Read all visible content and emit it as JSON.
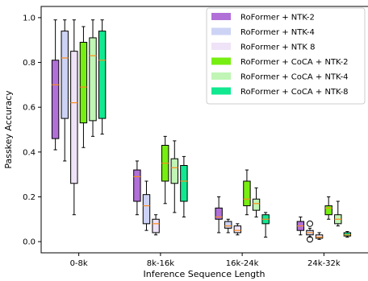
{
  "chart_data": {
    "type": "box",
    "xlabel": "Inference Sequence Length",
    "ylabel": "Passkey Accuracy",
    "ylim": [
      -0.05,
      1.05
    ],
    "yticks": [
      "0.0",
      "0.2",
      "0.4",
      "0.6",
      "0.8",
      "1.0"
    ],
    "ytick_values": [
      0.0,
      0.2,
      0.4,
      0.6,
      0.8,
      1.0
    ],
    "categories": [
      "0-8k",
      "8k-16k",
      "16k-24k",
      "24k-32k"
    ],
    "legend_position": "top-right",
    "series": [
      {
        "name": "RoFormer + NTK-2",
        "color": "#b070d8",
        "boxes": [
          {
            "whislo": 0.41,
            "q1": 0.46,
            "med": 0.7,
            "q3": 0.81,
            "whishi": 0.99
          },
          {
            "whislo": 0.12,
            "q1": 0.18,
            "med": 0.29,
            "q3": 0.32,
            "whishi": 0.36
          },
          {
            "whislo": 0.04,
            "q1": 0.1,
            "med": 0.11,
            "q3": 0.15,
            "whishi": 0.2
          },
          {
            "whislo": 0.03,
            "q1": 0.05,
            "med": 0.07,
            "q3": 0.09,
            "whishi": 0.11
          }
        ]
      },
      {
        "name": "RoFormer + NTK-4",
        "color": "#cdd3f5",
        "boxes": [
          {
            "whislo": 0.36,
            "q1": 0.55,
            "med": 0.82,
            "q3": 0.94,
            "whishi": 0.99
          },
          {
            "whislo": 0.05,
            "q1": 0.08,
            "med": 0.16,
            "q3": 0.21,
            "whishi": 0.27
          },
          {
            "whislo": 0.04,
            "q1": 0.06,
            "med": 0.07,
            "q3": 0.09,
            "whishi": 0.1
          },
          {
            "whislo": 0.02,
            "q1": 0.03,
            "med": 0.04,
            "q3": 0.05,
            "whishi": 0.06,
            "fliers": [
              0.01,
              0.08
            ]
          }
        ]
      },
      {
        "name": "RoFormer + NTK 8",
        "color": "#efe3f7",
        "boxes": [
          {
            "whislo": 0.12,
            "q1": 0.26,
            "med": 0.62,
            "q3": 0.85,
            "whishi": 0.99
          },
          {
            "whislo": 0.03,
            "q1": 0.04,
            "med": 0.08,
            "q3": 0.1,
            "whishi": 0.12
          },
          {
            "whislo": 0.03,
            "q1": 0.04,
            "med": 0.05,
            "q3": 0.07,
            "whishi": 0.08
          },
          {
            "whislo": 0.01,
            "q1": 0.015,
            "med": 0.02,
            "q3": 0.03,
            "whishi": 0.04
          }
        ]
      },
      {
        "name": "RoFormer + CoCA + NTK-2",
        "color": "#77ee11",
        "boxes": [
          {
            "whislo": 0.42,
            "q1": 0.53,
            "med": 0.69,
            "q3": 0.89,
            "whishi": 0.96
          },
          {
            "whislo": 0.17,
            "q1": 0.27,
            "med": 0.35,
            "q3": 0.43,
            "whishi": 0.47
          },
          {
            "whislo": 0.12,
            "q1": 0.16,
            "med": 0.19,
            "q3": 0.27,
            "whishi": 0.32
          },
          {
            "whislo": 0.1,
            "q1": 0.12,
            "med": 0.15,
            "q3": 0.16,
            "whishi": 0.2
          }
        ]
      },
      {
        "name": "RoFormer + CoCA + NTK-4",
        "color": "#c0f5b5",
        "boxes": [
          {
            "whislo": 0.47,
            "q1": 0.54,
            "med": 0.83,
            "q3": 0.91,
            "whishi": 0.99
          },
          {
            "whislo": 0.13,
            "q1": 0.26,
            "med": 0.33,
            "q3": 0.37,
            "whishi": 0.45
          },
          {
            "whislo": 0.11,
            "q1": 0.14,
            "med": 0.17,
            "q3": 0.19,
            "whishi": 0.24
          },
          {
            "whislo": 0.07,
            "q1": 0.08,
            "med": 0.1,
            "q3": 0.12,
            "whishi": 0.18
          }
        ]
      },
      {
        "name": "RoFormer + CoCA + NTK-8",
        "color": "#11e890",
        "boxes": [
          {
            "whislo": 0.48,
            "q1": 0.55,
            "med": 0.81,
            "q3": 0.94,
            "whishi": 0.99
          },
          {
            "whislo": 0.11,
            "q1": 0.18,
            "med": 0.27,
            "q3": 0.34,
            "whishi": 0.38
          },
          {
            "whislo": 0.02,
            "q1": 0.08,
            "med": 0.1,
            "q3": 0.12,
            "whishi": 0.13
          },
          {
            "whislo": 0.02,
            "q1": 0.025,
            "med": 0.03,
            "q3": 0.04,
            "whishi": 0.045
          }
        ]
      }
    ]
  }
}
